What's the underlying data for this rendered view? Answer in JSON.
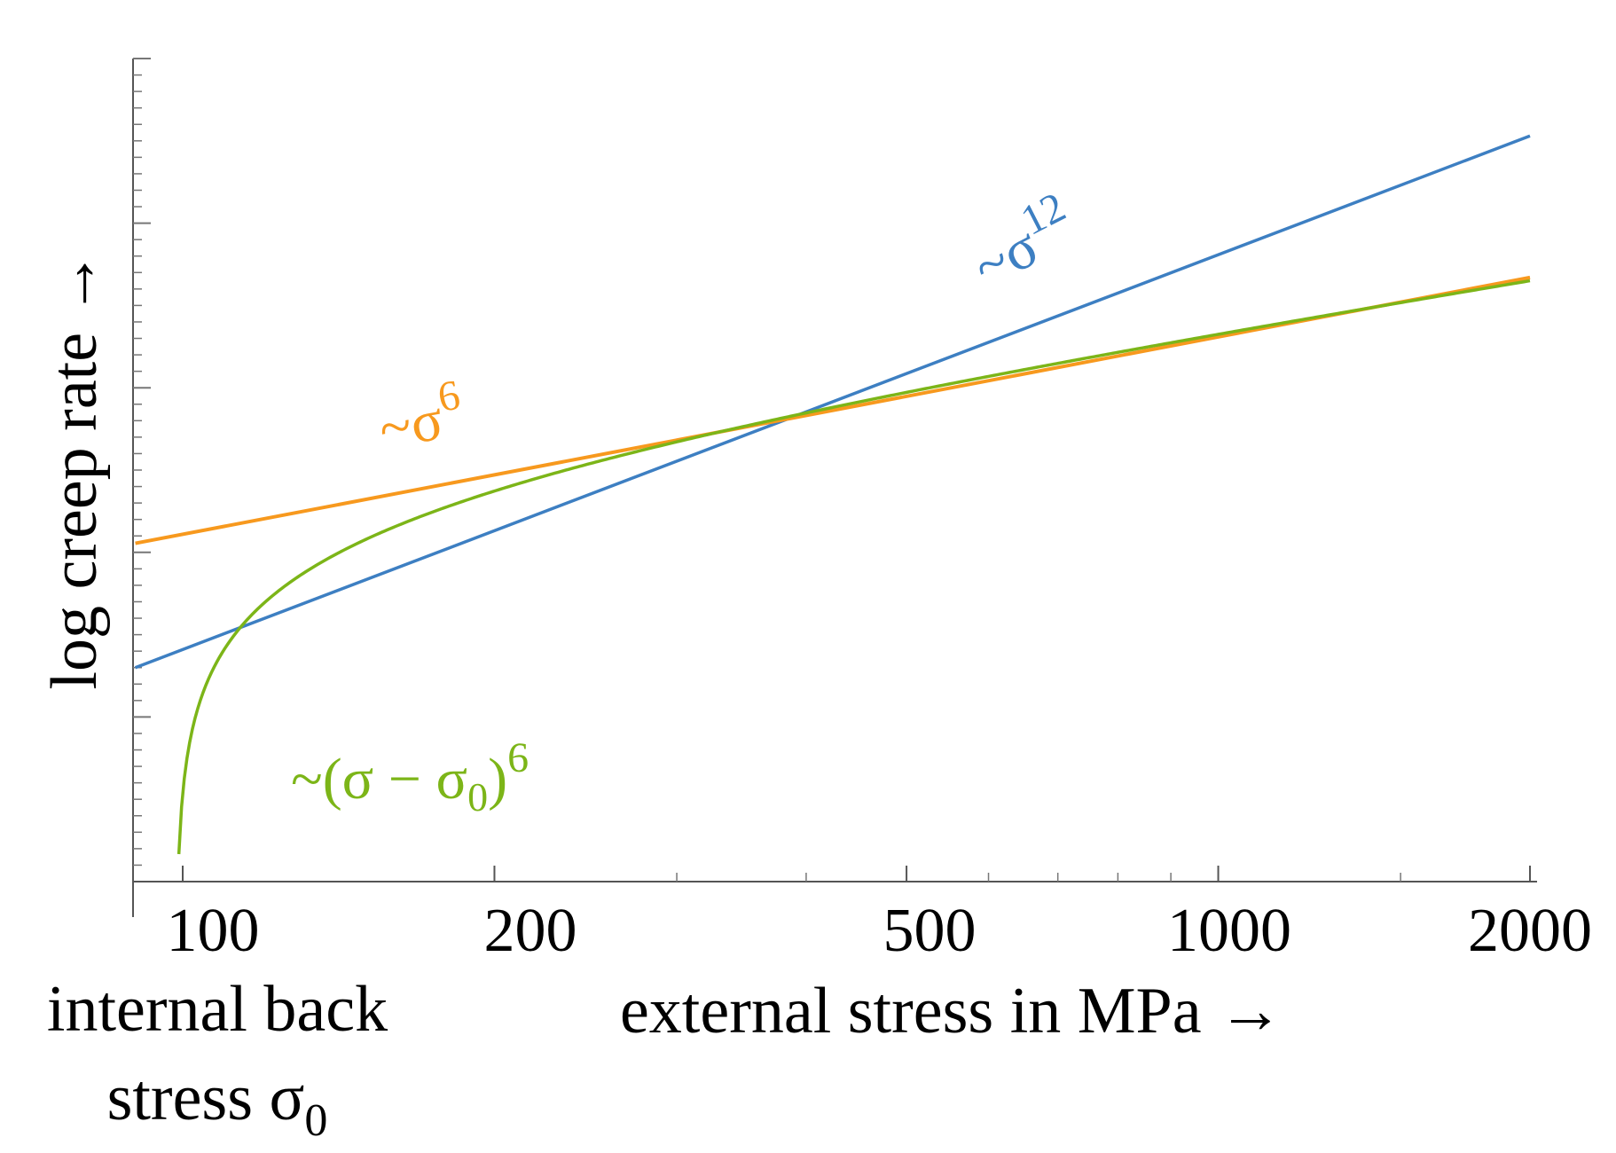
{
  "chart_data": {
    "type": "line",
    "title": "",
    "xlabel": "external stress in MPa →",
    "ylabel": "log creep rate →",
    "x_scale": "log",
    "xlim": [
      100,
      2000
    ],
    "ylim": [
      0,
      10
    ],
    "x_ticks": [
      {
        "value": 100,
        "label": "100",
        "color": "#7cb518"
      },
      {
        "value": 200,
        "label": "200",
        "color": "#000000"
      },
      {
        "value": 500,
        "label": "500",
        "color": "#000000"
      },
      {
        "value": 1000,
        "label": "1000",
        "color": "#000000"
      },
      {
        "value": 2000,
        "label": "2000",
        "color": "#000000"
      }
    ],
    "x_minor_ticks": [
      300,
      400,
      600,
      700,
      800,
      900,
      1500
    ],
    "y_ticks_unlabeled": true,
    "series": [
      {
        "name": "sigma12",
        "label_base": "~σ",
        "label_exponent": "12",
        "color": "#3d7fc2",
        "kind": "power",
        "x_start": 90,
        "x_end": 2000,
        "y_start": 2.6,
        "y_end": 9.06
      },
      {
        "name": "sigma6",
        "label_base": "~σ",
        "label_exponent": "6",
        "color": "#f7991e",
        "kind": "power",
        "x_start": 90,
        "x_end": 2000,
        "y_start": 4.11,
        "y_end": 7.34
      },
      {
        "name": "shifted",
        "label_prefix": "~(σ − σ",
        "label_subscript": "0",
        "label_suffix": ")",
        "label_exponent": "6",
        "color": "#7cb518",
        "kind": "shifted_power",
        "sigma0": 98.5,
        "exponent": 6,
        "x_end": 2000,
        "y_end": 7.3
      }
    ],
    "annotation": {
      "line1": "internal back",
      "line2": "stress σ",
      "line2_subscript": "0",
      "color": "#7cb518"
    }
  }
}
